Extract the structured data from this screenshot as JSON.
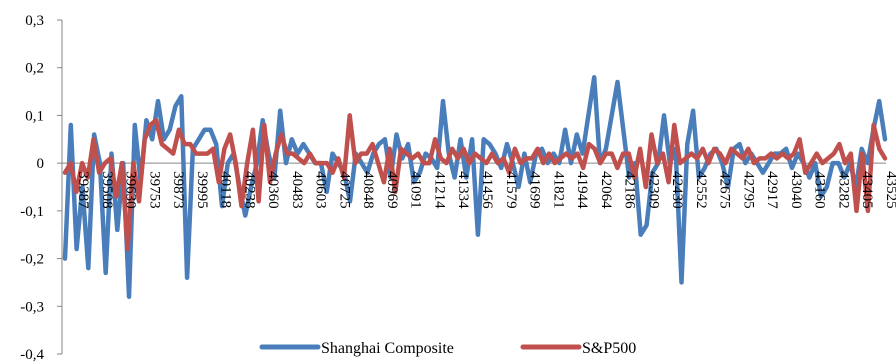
{
  "chart_data": {
    "type": "line",
    "title": "",
    "xlabel": "",
    "ylabel": "",
    "ylim": [
      -0.4,
      0.3
    ],
    "yticks": [
      0.3,
      0.2,
      0.1,
      0,
      -0.1,
      -0.2,
      -0.3,
      -0.4
    ],
    "ytick_labels": [
      "0,3",
      "0,2",
      "0,1",
      "0",
      "-0,1",
      "-0,2",
      "-0,3",
      "-0,4"
    ],
    "xtick_labels": [
      "39387",
      "39508",
      "39630",
      "39753",
      "39873",
      "39995",
      "40118",
      "40238",
      "40360",
      "40483",
      "40603",
      "40725",
      "40848",
      "40969",
      "41091",
      "41214",
      "41334",
      "41456",
      "41579",
      "41699",
      "41821",
      "41944",
      "42064",
      "42186",
      "42309",
      "42430",
      "42552",
      "42675",
      "42795",
      "42917",
      "43040",
      "43160",
      "43282",
      "43405",
      "43525"
    ],
    "x_start": 39387,
    "x_end": 43525,
    "grid": false,
    "legend_position": "bottom",
    "series": [
      {
        "name": "Shanghai Composite",
        "color": "#4a7ebb",
        "values": [
          -0.2,
          0.08,
          -0.18,
          -0.05,
          -0.22,
          0.06,
          0.0,
          -0.23,
          0.02,
          -0.14,
          0.0,
          -0.28,
          0.08,
          -0.04,
          0.09,
          0.05,
          0.13,
          0.05,
          0.07,
          0.12,
          0.14,
          -0.24,
          0.03,
          0.05,
          0.07,
          0.07,
          0.04,
          -0.09,
          0.0,
          0.02,
          -0.05,
          -0.11,
          -0.05,
          0.0,
          0.09,
          0.02,
          -0.03,
          0.11,
          0.0,
          0.05,
          0.02,
          0.04,
          0.02,
          0.0,
          0.0,
          -0.06,
          0.02,
          0.0,
          -0.02,
          -0.08,
          0.02,
          0.0,
          -0.02,
          0.02,
          0.04,
          0.05,
          -0.03,
          0.06,
          0.01,
          0.04,
          -0.04,
          -0.02,
          0.02,
          0.01,
          -0.01,
          0.13,
          0.02,
          -0.03,
          0.05,
          -0.03,
          0.05,
          -0.15,
          0.05,
          0.04,
          0.02,
          -0.01,
          0.04,
          0.0,
          -0.05,
          0.02,
          -0.04,
          0.02,
          0.03,
          0.0,
          0.02,
          0.0,
          0.07,
          0.0,
          0.06,
          0.02,
          0.1,
          0.18,
          0.0,
          0.03,
          0.1,
          0.17,
          0.07,
          -0.03,
          0.0,
          -0.15,
          -0.13,
          -0.02,
          0.0,
          0.1,
          0.0,
          0.03,
          -0.25,
          0.04,
          0.11,
          -0.03,
          -0.01,
          0.02,
          0.03,
          0.0,
          -0.05,
          0.03,
          0.04,
          0.0,
          0.02,
          0.0,
          -0.02,
          0.0,
          0.02,
          0.02,
          0.03,
          -0.01,
          0.02,
          0.0,
          -0.03,
          0.0,
          -0.07,
          -0.05,
          0.0,
          0.0,
          -0.03,
          0.0,
          -0.05,
          0.03,
          0.0,
          0.07,
          0.13,
          0.05
        ]
      },
      {
        "name": "S&P500",
        "color": "#c0504d",
        "values": [
          -0.02,
          0.0,
          -0.06,
          0.0,
          -0.03,
          0.05,
          -0.02,
          0.0,
          0.01,
          -0.07,
          0.0,
          -0.18,
          0.0,
          -0.08,
          0.05,
          0.08,
          0.09,
          0.04,
          0.03,
          0.02,
          0.07,
          0.04,
          0.04,
          0.02,
          0.02,
          0.02,
          0.03,
          -0.04,
          0.03,
          0.06,
          0.0,
          -0.09,
          0.0,
          0.07,
          -0.08,
          0.08,
          -0.04,
          0.02,
          0.06,
          0.02,
          0.02,
          0.01,
          0.0,
          0.02,
          0.0,
          0.0,
          0.0,
          -0.02,
          0.01,
          -0.03,
          0.1,
          0.0,
          0.02,
          0.02,
          0.04,
          0.0,
          -0.04,
          0.03,
          -0.06,
          0.03,
          0.02,
          0.01,
          0.02,
          0.0,
          0.0,
          0.05,
          0.01,
          0.0,
          0.03,
          0.01,
          0.03,
          0.0,
          0.02,
          0.01,
          0.0,
          0.02,
          0.0,
          0.01,
          -0.02,
          0.03,
          0.0,
          0.01,
          0.01,
          0.03,
          0.0,
          0.02,
          0.0,
          0.01,
          0.02,
          0.01,
          0.02,
          -0.01,
          0.04,
          0.03,
          0.0,
          0.02,
          0.02,
          -0.01,
          0.02,
          0.02,
          -0.03,
          0.03,
          -0.05,
          0.06,
          0.0,
          0.02,
          -0.04,
          0.08,
          0.0,
          0.01,
          0.02,
          0.01,
          0.03,
          0.0,
          0.03,
          0.02,
          0.0,
          0.03,
          0.02,
          0.01,
          0.03,
          0.0,
          0.01,
          0.01,
          0.02,
          0.01,
          0.02,
          0.01,
          0.02,
          0.05,
          -0.02,
          0.0,
          0.02,
          0.0,
          0.01,
          0.02,
          0.04,
          0.0,
          0.02,
          -0.1,
          0.02,
          -0.1,
          0.08,
          0.03,
          0.01
        ]
      }
    ]
  }
}
